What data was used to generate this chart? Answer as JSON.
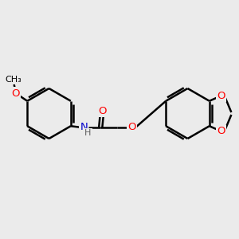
{
  "background_color": "#ebebeb",
  "bond_color": "#000000",
  "bond_width": 1.8,
  "atom_colors": {
    "O": "#ff0000",
    "N": "#0000cc",
    "C": "#000000",
    "H": "#606060"
  },
  "font_size": 8.5,
  "fig_width": 3.0,
  "fig_height": 3.0,
  "xlim": [
    0,
    10
  ],
  "ylim": [
    1,
    8
  ]
}
